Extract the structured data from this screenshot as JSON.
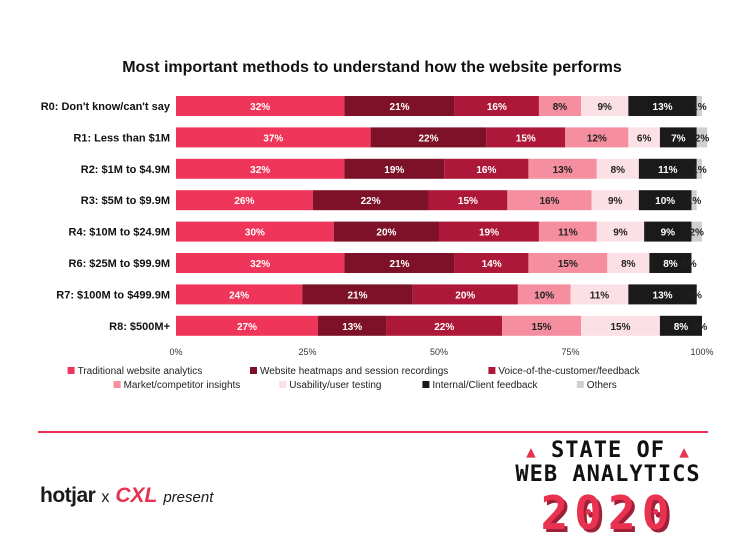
{
  "chart_data": {
    "type": "bar",
    "orientation": "horizontal",
    "stacked": true,
    "title": "Most important methods to understand how the website performs",
    "categories": [
      "R0: Don't know/can't say",
      "R1: Less than $1M",
      "R2: $1M to $4.9M",
      "R3: $5M to $9.9M",
      "R4: $10M to $24.9M",
      "R6: $25M to $99.9M",
      "R7: $100M to $499.9M",
      "R8: $500M+"
    ],
    "series": [
      {
        "name": "Traditional website analytics",
        "color": "#f0355a",
        "text_color": "#ffffff",
        "values": [
          32,
          37,
          32,
          26,
          30,
          32,
          24,
          27
        ]
      },
      {
        "name": "Website heatmaps and session recordings",
        "color": "#7d1127",
        "text_color": "#ffffff",
        "values": [
          21,
          22,
          19,
          22,
          20,
          21,
          21,
          13
        ]
      },
      {
        "name": "Voice-of-the-customer/feedback",
        "color": "#ad1838",
        "text_color": "#ffffff",
        "values": [
          16,
          15,
          16,
          15,
          19,
          14,
          20,
          22
        ]
      },
      {
        "name": "Market/competitor insights",
        "color": "#f58fa0",
        "text_color": "#222222",
        "values": [
          8,
          12,
          13,
          16,
          11,
          15,
          10,
          15
        ]
      },
      {
        "name": "Usability/user testing",
        "color": "#fbe0e5",
        "text_color": "#222222",
        "values": [
          9,
          6,
          8,
          9,
          9,
          8,
          11,
          15
        ]
      },
      {
        "name": "Internal/Client feedback",
        "color": "#1a1a1a",
        "text_color": "#ffffff",
        "values": [
          13,
          7,
          11,
          10,
          9,
          8,
          13,
          8
        ]
      },
      {
        "name": "Others",
        "color": "#cfcfcf",
        "text_color": "#222222",
        "values": [
          1,
          2,
          1,
          1,
          2,
          0,
          0,
          0
        ]
      }
    ],
    "xlim": [
      0,
      100
    ],
    "xticks": [
      "0%",
      "25%",
      "50%",
      "75%",
      "100%"
    ],
    "value_suffix": "%",
    "legend_position": "bottom"
  },
  "branding": {
    "partner_1": "hotjar",
    "separator": "x",
    "partner_2": "CXL",
    "tagline": "present",
    "logo_line1": "STATE OF",
    "logo_line2": "WEB ANALYTICS",
    "logo_year": "2020"
  }
}
